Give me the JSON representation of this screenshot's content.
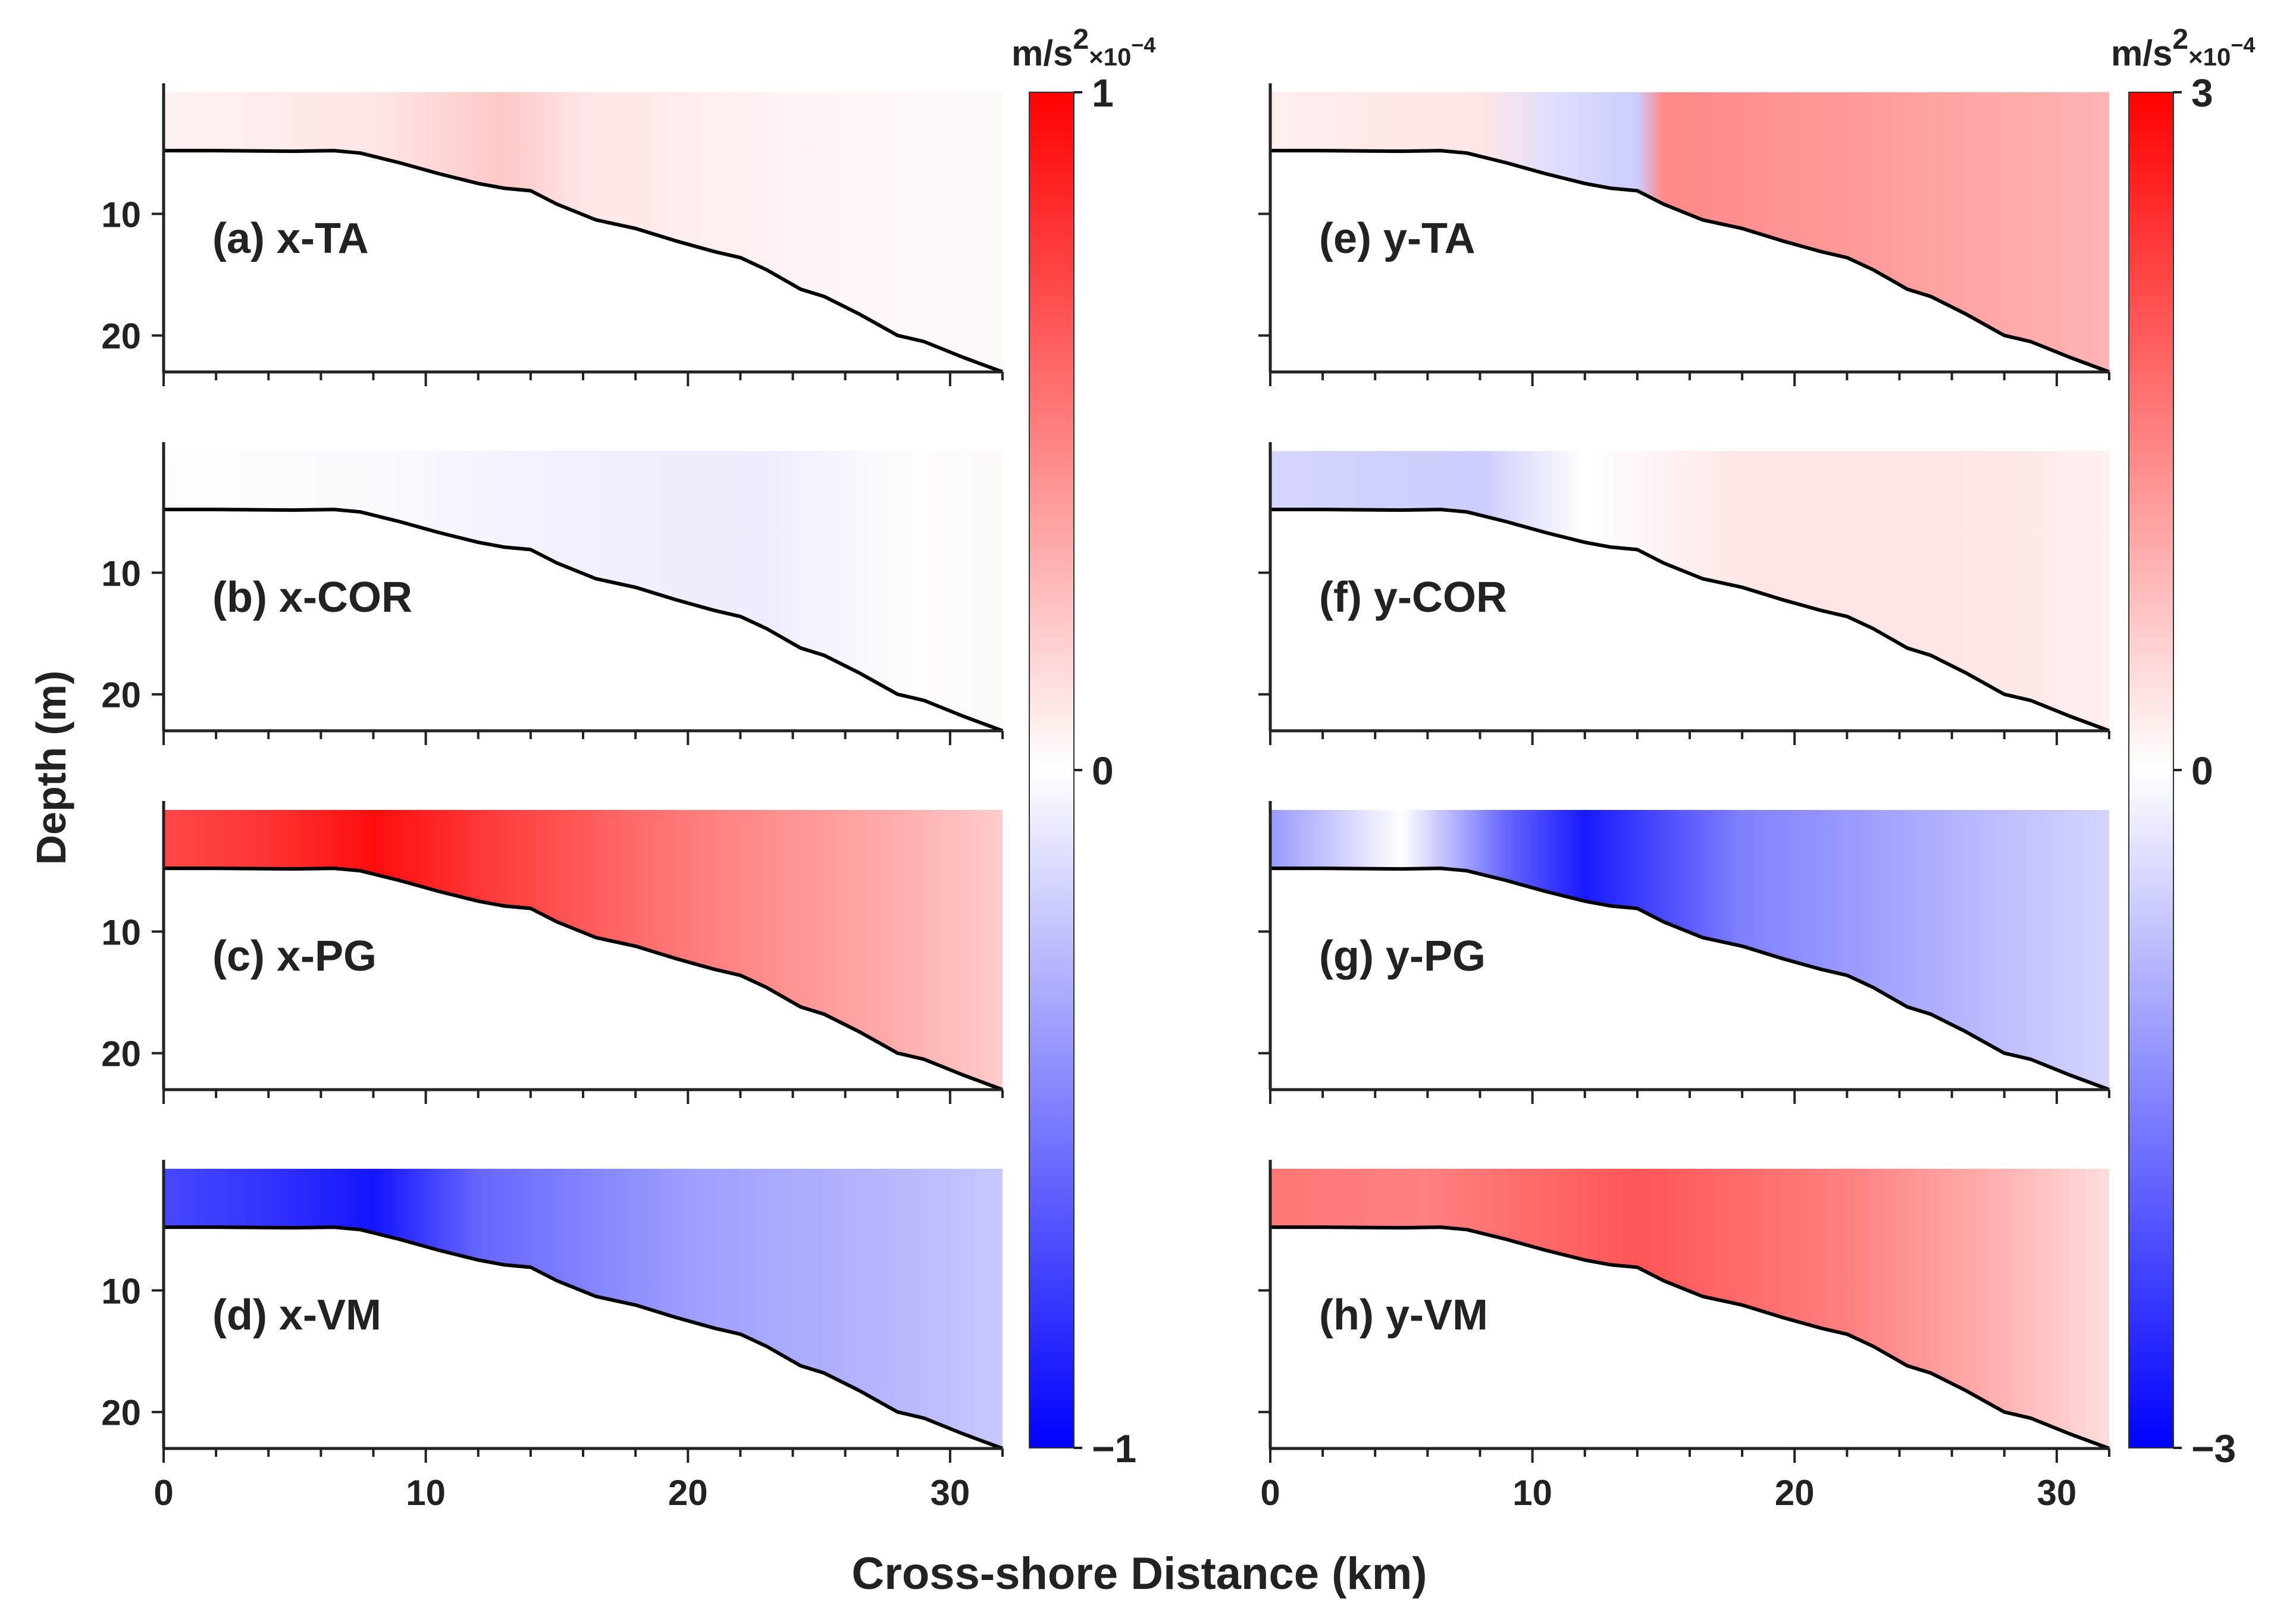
{
  "chart_data": {
    "type": "heatmap",
    "xlabel": "Cross-shore Distance (km)",
    "ylabel": "Depth (m)",
    "xlim": [
      0,
      32
    ],
    "ylim": [
      0,
      23
    ],
    "x_ticks": [
      0,
      10,
      20,
      30
    ],
    "y_ticks": [
      10,
      20
    ],
    "bathymetry": {
      "x": [
        0,
        2,
        5,
        6.5,
        7.5,
        9,
        10.5,
        12,
        13,
        14,
        15,
        16.5,
        18,
        19.5,
        21,
        22,
        23,
        24.3,
        25.2,
        26.5,
        28,
        29,
        30.5,
        32
      ],
      "depth": [
        4.8,
        4.8,
        4.85,
        4.8,
        5.0,
        5.8,
        6.7,
        7.5,
        7.9,
        8.1,
        9.2,
        10.5,
        11.2,
        12.2,
        13.1,
        13.6,
        14.6,
        16.2,
        16.8,
        18.2,
        20.0,
        20.5,
        21.8,
        23.0
      ]
    },
    "colorbars": [
      {
        "name": "left",
        "unit_base": "m/s",
        "unit_exp": "2",
        "scale": "×10",
        "scale_exp": "−4",
        "max_label": "1",
        "mid_label": "0",
        "min_label": "−1",
        "range": [
          -1,
          1
        ]
      },
      {
        "name": "right",
        "unit_base": "m/s",
        "unit_exp": "2",
        "scale": "×10",
        "scale_exp": "−4",
        "max_label": "3",
        "mid_label": "0",
        "min_label": "−3",
        "range": [
          -3,
          3
        ]
      }
    ],
    "panels": [
      {
        "id": "a",
        "label": "(a) x-TA",
        "col": 0,
        "row": 0,
        "description_values": {
          "x": [
            0,
            8,
            13,
            16,
            25,
            32
          ],
          "value": [
            0.05,
            0.1,
            0.22,
            0.1,
            0.04,
            0.02
          ]
        }
      },
      {
        "id": "b",
        "label": "(b) x-COR",
        "col": 0,
        "row": 1,
        "description_values": {
          "x": [
            0,
            8,
            15,
            23,
            28,
            32
          ],
          "value": [
            0.01,
            -0.02,
            -0.06,
            -0.07,
            -0.01,
            0.02
          ]
        }
      },
      {
        "id": "c",
        "label": "(c) x-PG",
        "col": 0,
        "row": 2,
        "description_values": {
          "x": [
            0,
            4,
            8,
            13,
            20,
            28,
            32
          ],
          "value": [
            0.72,
            0.8,
            0.95,
            0.75,
            0.52,
            0.32,
            0.2
          ]
        }
      },
      {
        "id": "d",
        "label": "(d) x-VM",
        "col": 0,
        "row": 3,
        "description_values": {
          "x": [
            0,
            4,
            8,
            12,
            20,
            28,
            32
          ],
          "value": [
            -0.72,
            -0.8,
            -0.92,
            -0.6,
            -0.38,
            -0.28,
            -0.22
          ]
        }
      },
      {
        "id": "e",
        "label": "(e) y-TA",
        "col": 1,
        "row": 0,
        "description_values": {
          "x": [
            0,
            8,
            11,
            14,
            15,
            22,
            32
          ],
          "value": [
            0.2,
            0.3,
            -0.4,
            -0.6,
            1.4,
            1.2,
            0.9
          ]
        }
      },
      {
        "id": "f",
        "label": "(f) y-COR",
        "col": 1,
        "row": 1,
        "description_values": {
          "x": [
            0,
            8,
            12,
            18,
            26,
            32
          ],
          "value": [
            -0.5,
            -0.6,
            0.0,
            0.3,
            0.3,
            0.2
          ]
        }
      },
      {
        "id": "g",
        "label": "(g) y-PG",
        "col": 1,
        "row": 2,
        "description_values": {
          "x": [
            0,
            5,
            9,
            12,
            18,
            26,
            32
          ],
          "value": [
            -1.2,
            0.0,
            -1.8,
            -2.7,
            -1.5,
            -0.9,
            -0.5
          ]
        }
      },
      {
        "id": "h",
        "label": "(h) y-VM",
        "col": 1,
        "row": 3,
        "description_values": {
          "x": [
            0,
            6,
            14,
            22,
            28,
            32
          ],
          "value": [
            1.6,
            1.5,
            2.0,
            1.5,
            0.9,
            0.4
          ]
        }
      }
    ]
  }
}
